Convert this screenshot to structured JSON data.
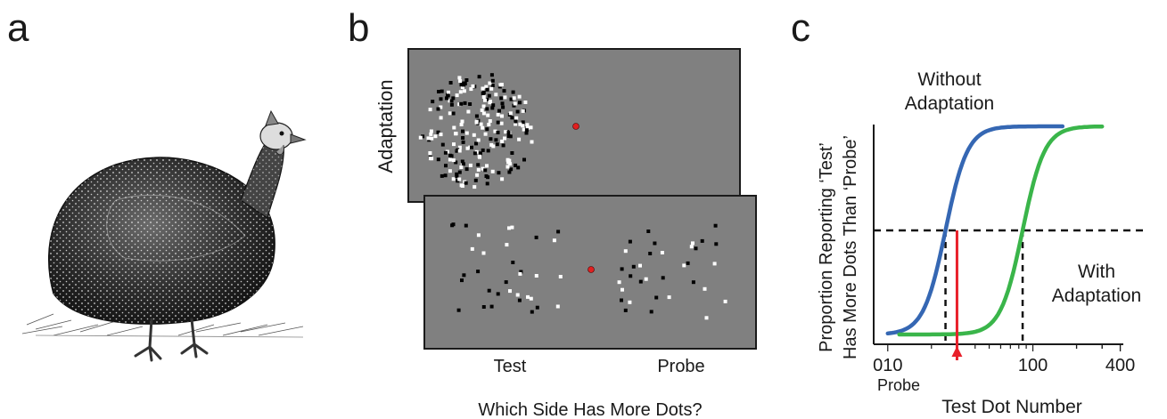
{
  "panels": {
    "a": {
      "letter": "a"
    },
    "b": {
      "letter": "b",
      "adaptation_label": "Adaptation",
      "test_label": "Test",
      "probe_label": "Probe",
      "question": "Which Side Has More Dots?"
    },
    "c": {
      "letter": "c"
    }
  },
  "colors": {
    "stimulus_gray": "#808080",
    "fixation_red": "#e02020",
    "without_adaptation": "#3567b3",
    "with_adaptation": "#3ab54a",
    "probe_red": "#e8202a"
  },
  "chart_data": {
    "type": "line",
    "xlabel": "Test Dot Number",
    "ylabel_line1": "Proportion Reporting ‘Test’",
    "ylabel_line2": "Has More Dots Than ‘Probe’",
    "x_scale": "log",
    "x_tick_labels": [
      "010",
      "100",
      "400"
    ],
    "probe_label": "Probe",
    "probe_x": 30,
    "threshold_y": 0.5,
    "series": [
      {
        "name_line1": "Without",
        "name_line2": "Adaptation",
        "color": "#3567b3",
        "midpoint_x": 25,
        "x_range": [
          10,
          160
        ]
      },
      {
        "name_line1": "With",
        "name_line2": "Adaptation",
        "color": "#3ab54a",
        "midpoint_x": 85,
        "x_range": [
          12,
          300
        ]
      }
    ]
  }
}
